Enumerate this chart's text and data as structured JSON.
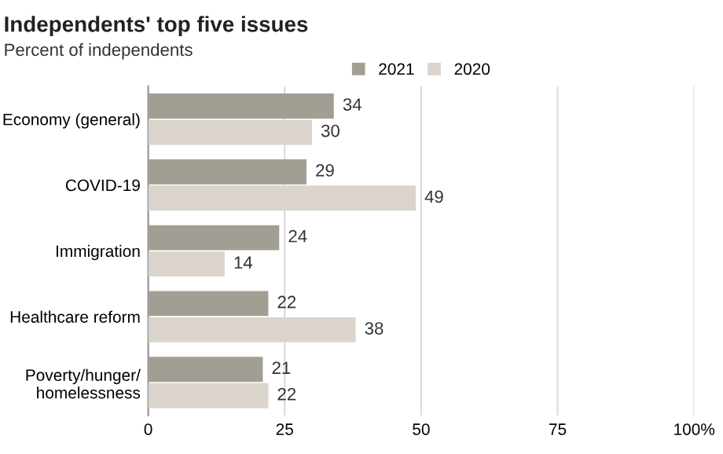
{
  "chart_data": {
    "type": "bar",
    "orientation": "horizontal",
    "title": "Independents' top five issues",
    "subtitle": "Percent of independents",
    "categories": [
      "Economy (general)",
      "COVID-19",
      "Immigration",
      "Healthcare reform",
      "Poverty/hunger/\nhomelessness"
    ],
    "series": [
      {
        "name": "2021",
        "color": "#a39e93",
        "values": [
          34,
          29,
          24,
          22,
          21
        ]
      },
      {
        "name": "2020",
        "color": "#dad4cd",
        "values": [
          30,
          49,
          14,
          38,
          22
        ]
      }
    ],
    "xlim": [
      0,
      100
    ],
    "xticks": [
      0,
      25,
      50,
      75,
      {
        "value": 100,
        "label": "100%"
      }
    ],
    "grid": "x",
    "legend": "top",
    "data_labels": true
  }
}
